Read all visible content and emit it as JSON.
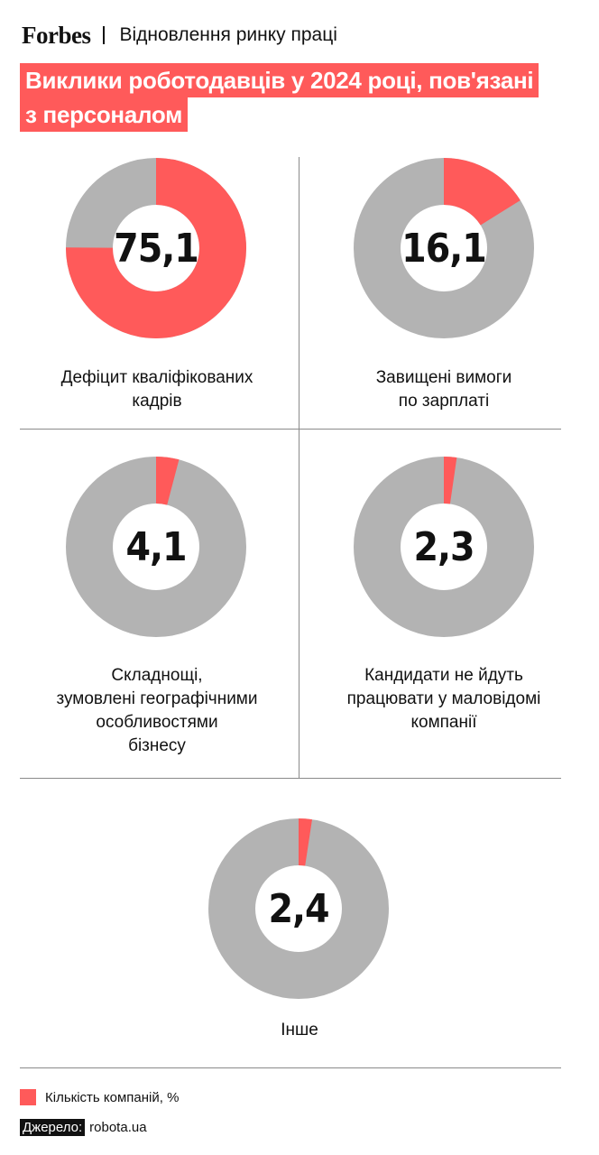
{
  "header": {
    "brand": "Forbes",
    "section": "Відновлення ринку праці"
  },
  "title_lines": [
    "Виклики роботодавців у 2024 році, пов'язані",
    "з персоналом"
  ],
  "colors": {
    "accent": "#ff5a5a",
    "rest": "#b3b3b3"
  },
  "chart_data": {
    "type": "pie",
    "unit": "%",
    "items": [
      {
        "value": 75.1,
        "value_label": "75,1",
        "label_lines": [
          "Дефіцит кваліфікованих",
          "кадрів"
        ]
      },
      {
        "value": 16.1,
        "value_label": "16,1",
        "label_lines": [
          "Завищені вимоги",
          "по зарплаті"
        ]
      },
      {
        "value": 4.1,
        "value_label": "4,1",
        "label_lines": [
          "Складнощі,",
          "зумовлені географічними",
          "особливостями",
          "бізнесу"
        ]
      },
      {
        "value": 2.3,
        "value_label": "2,3",
        "label_lines": [
          "Кандидати не йдуть",
          "працювати у маловідомі",
          "компанії"
        ]
      },
      {
        "value": 2.4,
        "value_label": "2,4",
        "label_lines": [
          "Інше"
        ]
      }
    ],
    "legend": "Кількість компаній, %"
  },
  "source": {
    "tag": "Джерело:",
    "text": "robota.ua"
  }
}
